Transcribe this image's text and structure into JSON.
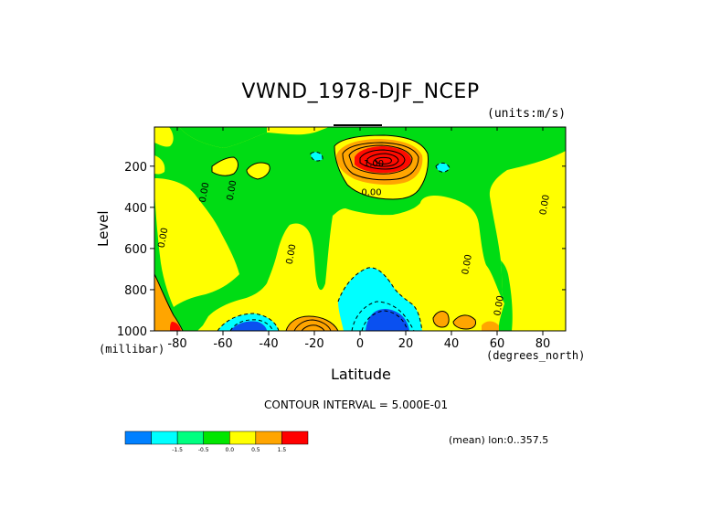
{
  "chart_data": {
    "type": "heatmap",
    "title": "VWND_1978-DJF_NCEP",
    "units_label": "(units:m/s)",
    "xlabel": "Latitude",
    "x_units": "(degrees_north)",
    "ylabel": "Level",
    "y_units": "(millibar)",
    "xlim": [
      -90,
      90
    ],
    "ylim": [
      1000,
      10
    ],
    "x_ticks": [
      -80,
      -60,
      -40,
      -20,
      0,
      20,
      40,
      60,
      80
    ],
    "y_ticks": [
      200,
      400,
      600,
      800,
      1000
    ],
    "contour_interval": "CONTOUR INTERVAL = 5.000E-01",
    "mean_label": "(mean) lon:0..357.5",
    "contour_labels": [
      {
        "text": "1.00",
        "lat": 6,
        "lev": 200
      },
      {
        "text": "0.00",
        "lat": 5,
        "lev": 340
      },
      {
        "text": "0.00",
        "lat": -67,
        "lev": 330
      },
      {
        "text": "0.00",
        "lat": -55,
        "lev": 320
      },
      {
        "text": "0.00",
        "lat": -85,
        "lev": 550
      },
      {
        "text": "0.00",
        "lat": -29,
        "lev": 630
      },
      {
        "text": "0.00",
        "lat": 48,
        "lev": 680
      },
      {
        "text": "0.00",
        "lat": 62,
        "lev": 880
      },
      {
        "text": "0.00",
        "lat": 82,
        "lev": 390
      }
    ],
    "colorbar": {
      "colors": [
        "#0080ff",
        "#00ffff",
        "#00ff80",
        "#00e600",
        "#ffff00",
        "#ffa500",
        "#ff0000"
      ],
      "labels": [
        "-1.5",
        "-0.5",
        "0.0",
        "0.5",
        "1.5"
      ]
    },
    "palette": {
      "blue": "#0a50f0",
      "cyan": "#00ffff",
      "green": "#00dc14",
      "yellow": "#ffff00",
      "orange": "#ffa500",
      "red": "#ff0a00"
    }
  }
}
